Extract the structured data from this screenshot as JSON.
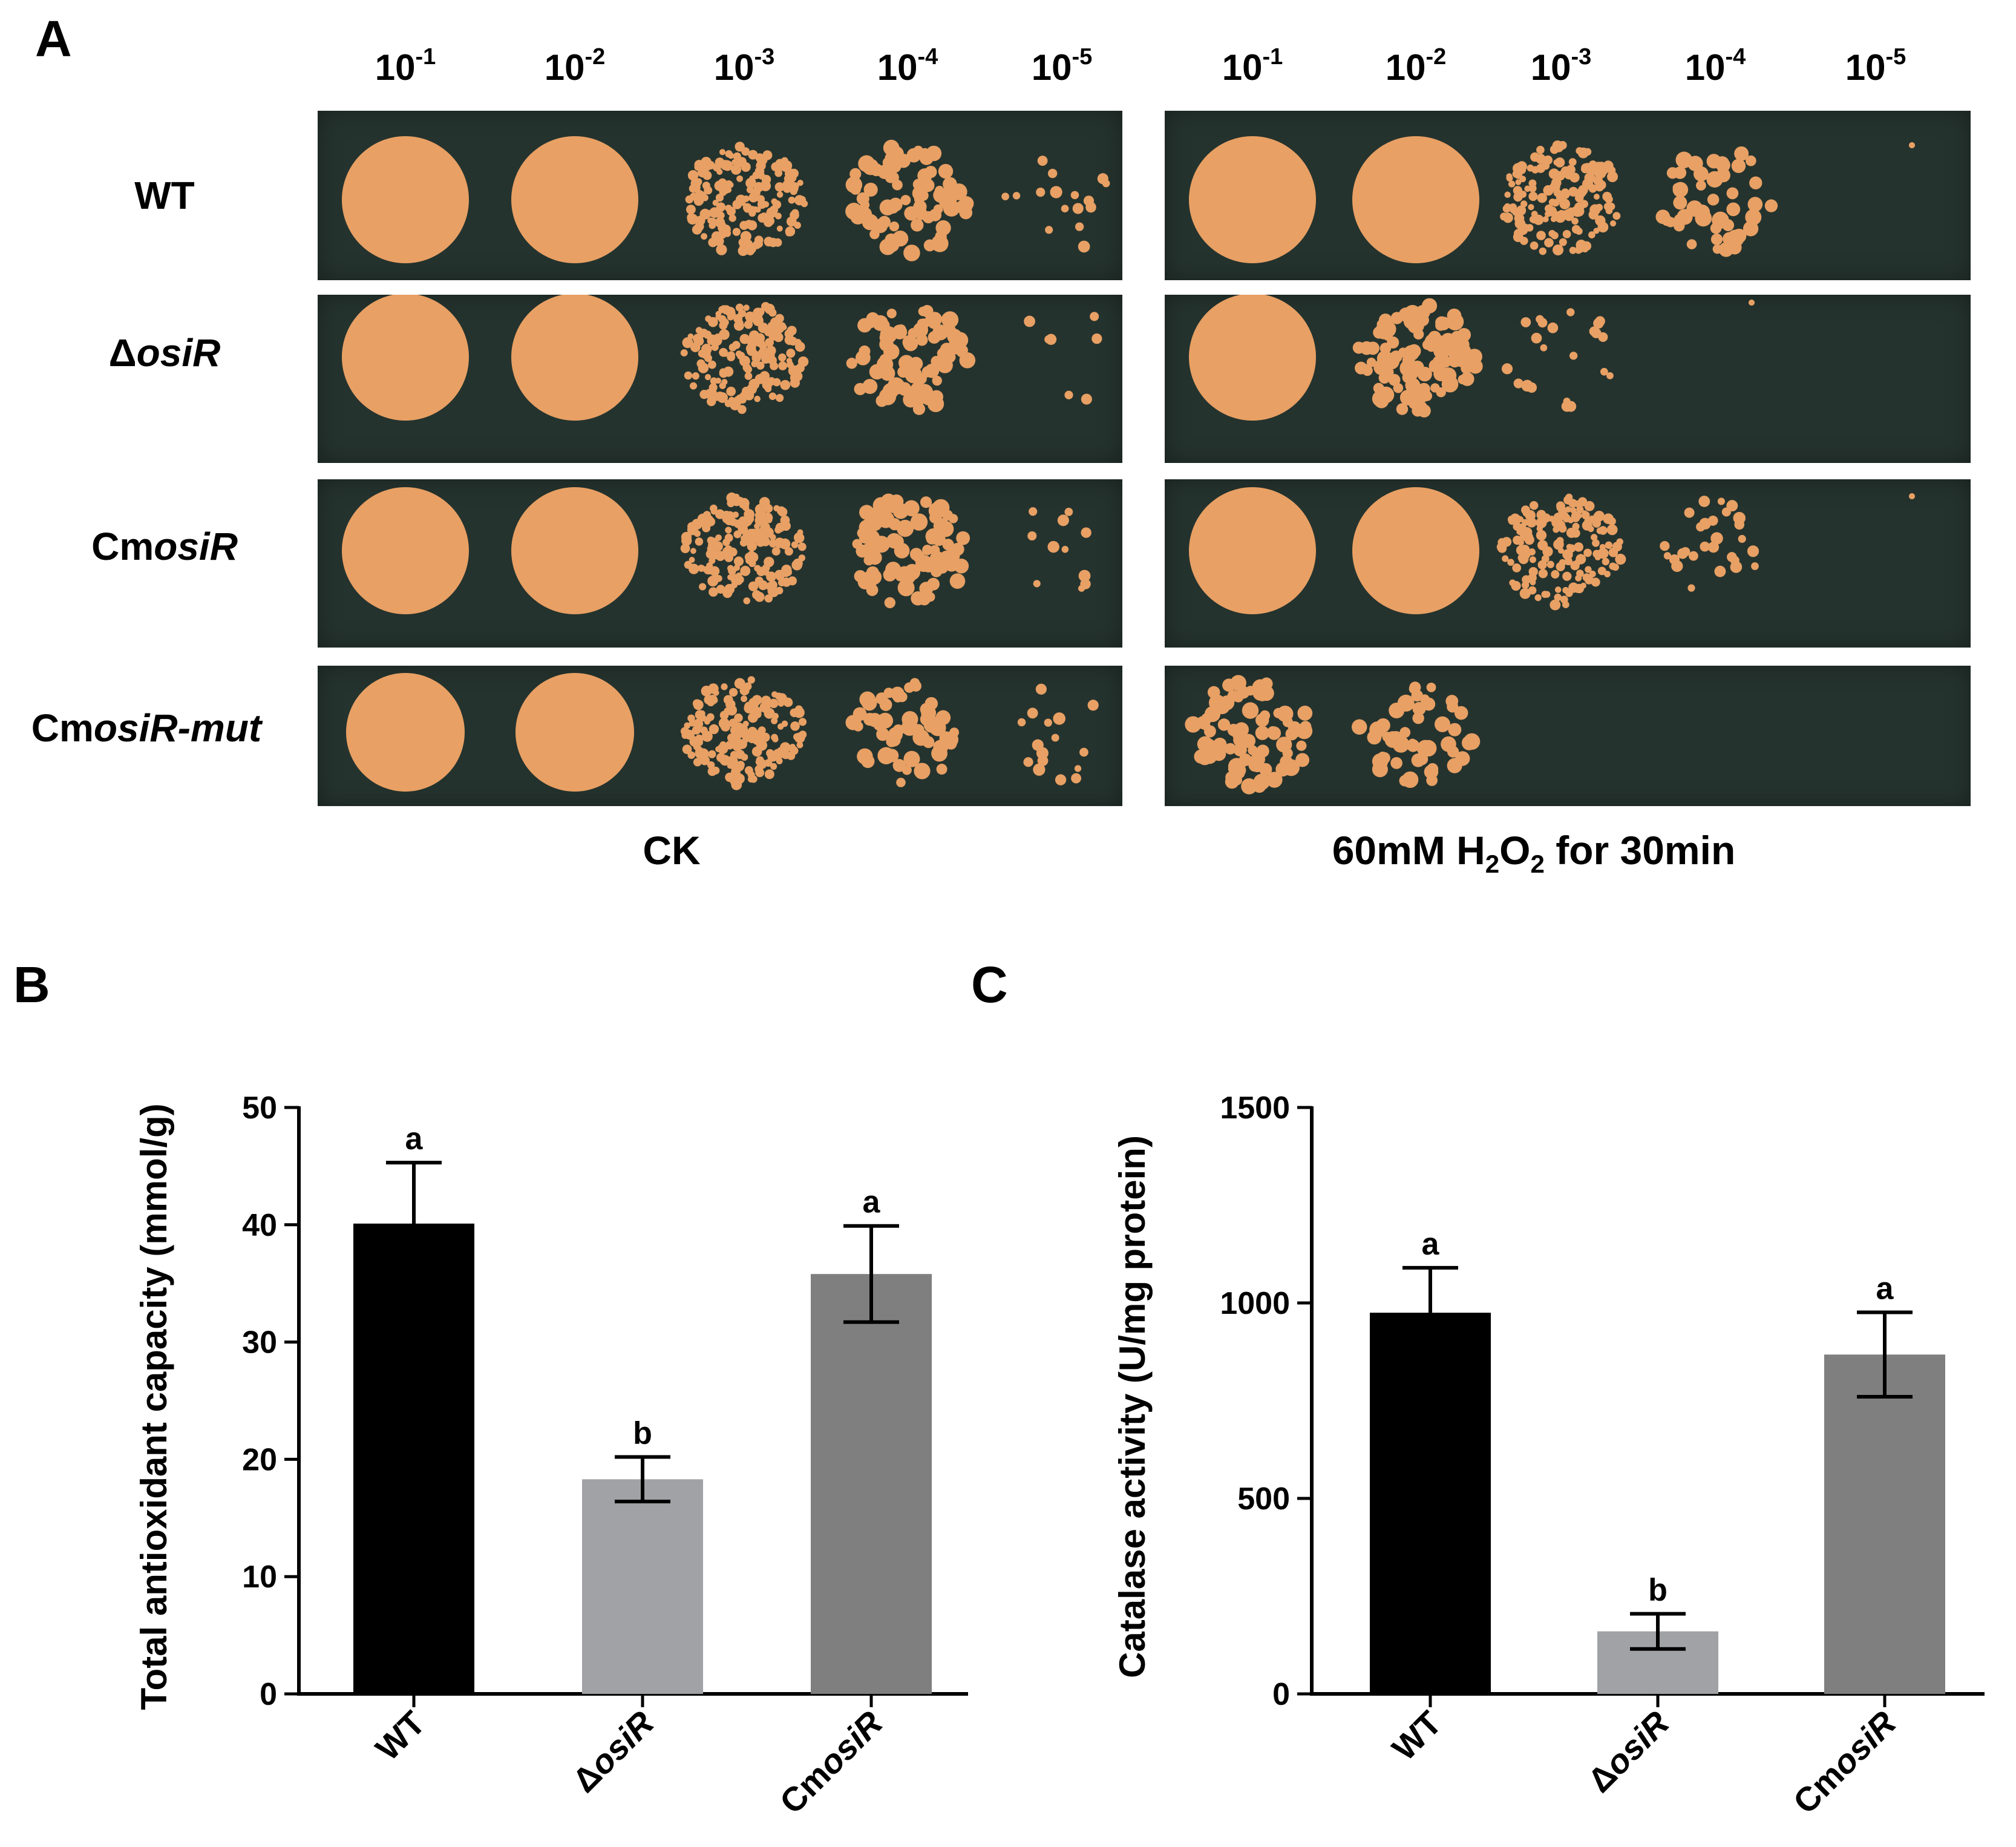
{
  "panels": {
    "a": {
      "letter": "A",
      "dilutions": [
        "-1",
        "-2",
        "-3",
        "-4",
        "-5"
      ],
      "dilution_base": "10",
      "strains": [
        {
          "prefix": "WT",
          "italic": ""
        },
        {
          "prefix": "Δ",
          "italic": "osiR"
        },
        {
          "prefix": "Cm",
          "italic": "osiR"
        },
        {
          "prefix": "Cm",
          "italic": "osiR-mut"
        }
      ],
      "conditions": {
        "ck": "CK",
        "h2o2": {
          "before": "60mM H",
          "sub1": "2",
          "mid": "O",
          "sub2": "2",
          "after": " for 30min"
        }
      },
      "colony_growth": {
        "ck": [
          [
            1.0,
            1.0,
            0.9,
            0.6,
            0.25
          ],
          [
            1.0,
            1.0,
            0.9,
            0.6,
            0.15
          ],
          [
            1.0,
            1.0,
            0.9,
            0.6,
            0.2
          ],
          [
            1.0,
            1.0,
            0.9,
            0.5,
            0.25
          ]
        ],
        "h2o2": [
          [
            1.0,
            1.0,
            0.85,
            0.45,
            0.02
          ],
          [
            1.0,
            0.7,
            0.3,
            0.03,
            0.0
          ],
          [
            1.0,
            1.0,
            0.85,
            0.35,
            0.02
          ],
          [
            0.6,
            0.45,
            0.0,
            0.0,
            0.0
          ]
        ]
      },
      "colors": {
        "plate": "#25332e",
        "colony": "#e8a064"
      }
    },
    "b": {
      "letter": "B",
      "chart_data": {
        "type": "bar",
        "categories": [
          {
            "prefix": "WT",
            "italic": ""
          },
          {
            "prefix": "Δ",
            "italic": "osiR"
          },
          {
            "prefix": "Cm",
            "italic": "osiR"
          }
        ],
        "values": [
          40.1,
          18.3,
          35.8
        ],
        "errors": [
          5.2,
          1.9,
          4.1
        ],
        "significance": [
          "a",
          "b",
          "a"
        ],
        "ylabel": "Total antioxidant capacity (mmol/g)",
        "xlabel": "",
        "ylim": [
          0,
          50
        ],
        "yticks": [
          "0",
          "10",
          "20",
          "30",
          "40",
          "50"
        ],
        "bar_colors": [
          "#000000",
          "#a0a2a5",
          "#7f7f7f"
        ]
      }
    },
    "c": {
      "letter": "C",
      "chart_data": {
        "type": "bar",
        "categories": [
          {
            "prefix": "WT",
            "italic": ""
          },
          {
            "prefix": "Δ",
            "italic": "osiR"
          },
          {
            "prefix": "Cm",
            "italic": "osiR"
          }
        ],
        "values": [
          975,
          160,
          868
        ],
        "errors": [
          115,
          45,
          108
        ],
        "significance": [
          "a",
          "b",
          "a"
        ],
        "ylabel": "Catalase activity (U/mg protein)",
        "xlabel": "",
        "ylim": [
          0,
          1500
        ],
        "yticks": [
          "0",
          "500",
          "1000",
          "1500"
        ],
        "bar_colors": [
          "#000000",
          "#a0a2a5",
          "#7f7f7f"
        ]
      }
    }
  }
}
